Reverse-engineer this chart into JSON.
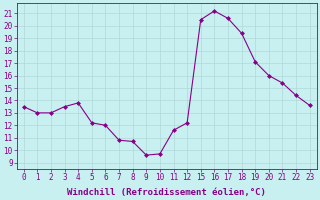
{
  "x_indices": [
    0,
    1,
    2,
    3,
    4,
    5,
    6,
    7,
    8,
    9,
    10,
    11,
    12,
    13,
    14,
    15,
    16,
    17,
    18,
    19,
    20,
    21
  ],
  "x_labels": [
    "0",
    "1",
    "2",
    "3",
    "4",
    "5",
    "6",
    "7",
    "8",
    "9",
    "10",
    "11",
    "12",
    "15",
    "16",
    "17",
    "18",
    "19",
    "20",
    "21",
    "22",
    "23"
  ],
  "y": [
    13.5,
    13.0,
    13.0,
    13.5,
    13.8,
    12.2,
    12.0,
    10.8,
    10.7,
    9.6,
    9.7,
    11.6,
    12.2,
    20.5,
    21.2,
    20.6,
    19.4,
    17.1,
    16.0,
    15.4,
    14.4,
    13.6
  ],
  "line_color": "#880088",
  "marker": "D",
  "marker_size": 2,
  "bg_color": "#c8f0f0",
  "grid_color": "#b0d8d8",
  "ylabel_ticks": [
    9,
    10,
    11,
    12,
    13,
    14,
    15,
    16,
    17,
    18,
    19,
    20,
    21
  ],
  "xlabel": "Windchill (Refroidissement éolien,°C)",
  "ylim": [
    8.5,
    21.8
  ],
  "xlim": [
    -0.5,
    21.5
  ],
  "tick_fontsize": 5.5,
  "label_fontsize": 6.5
}
